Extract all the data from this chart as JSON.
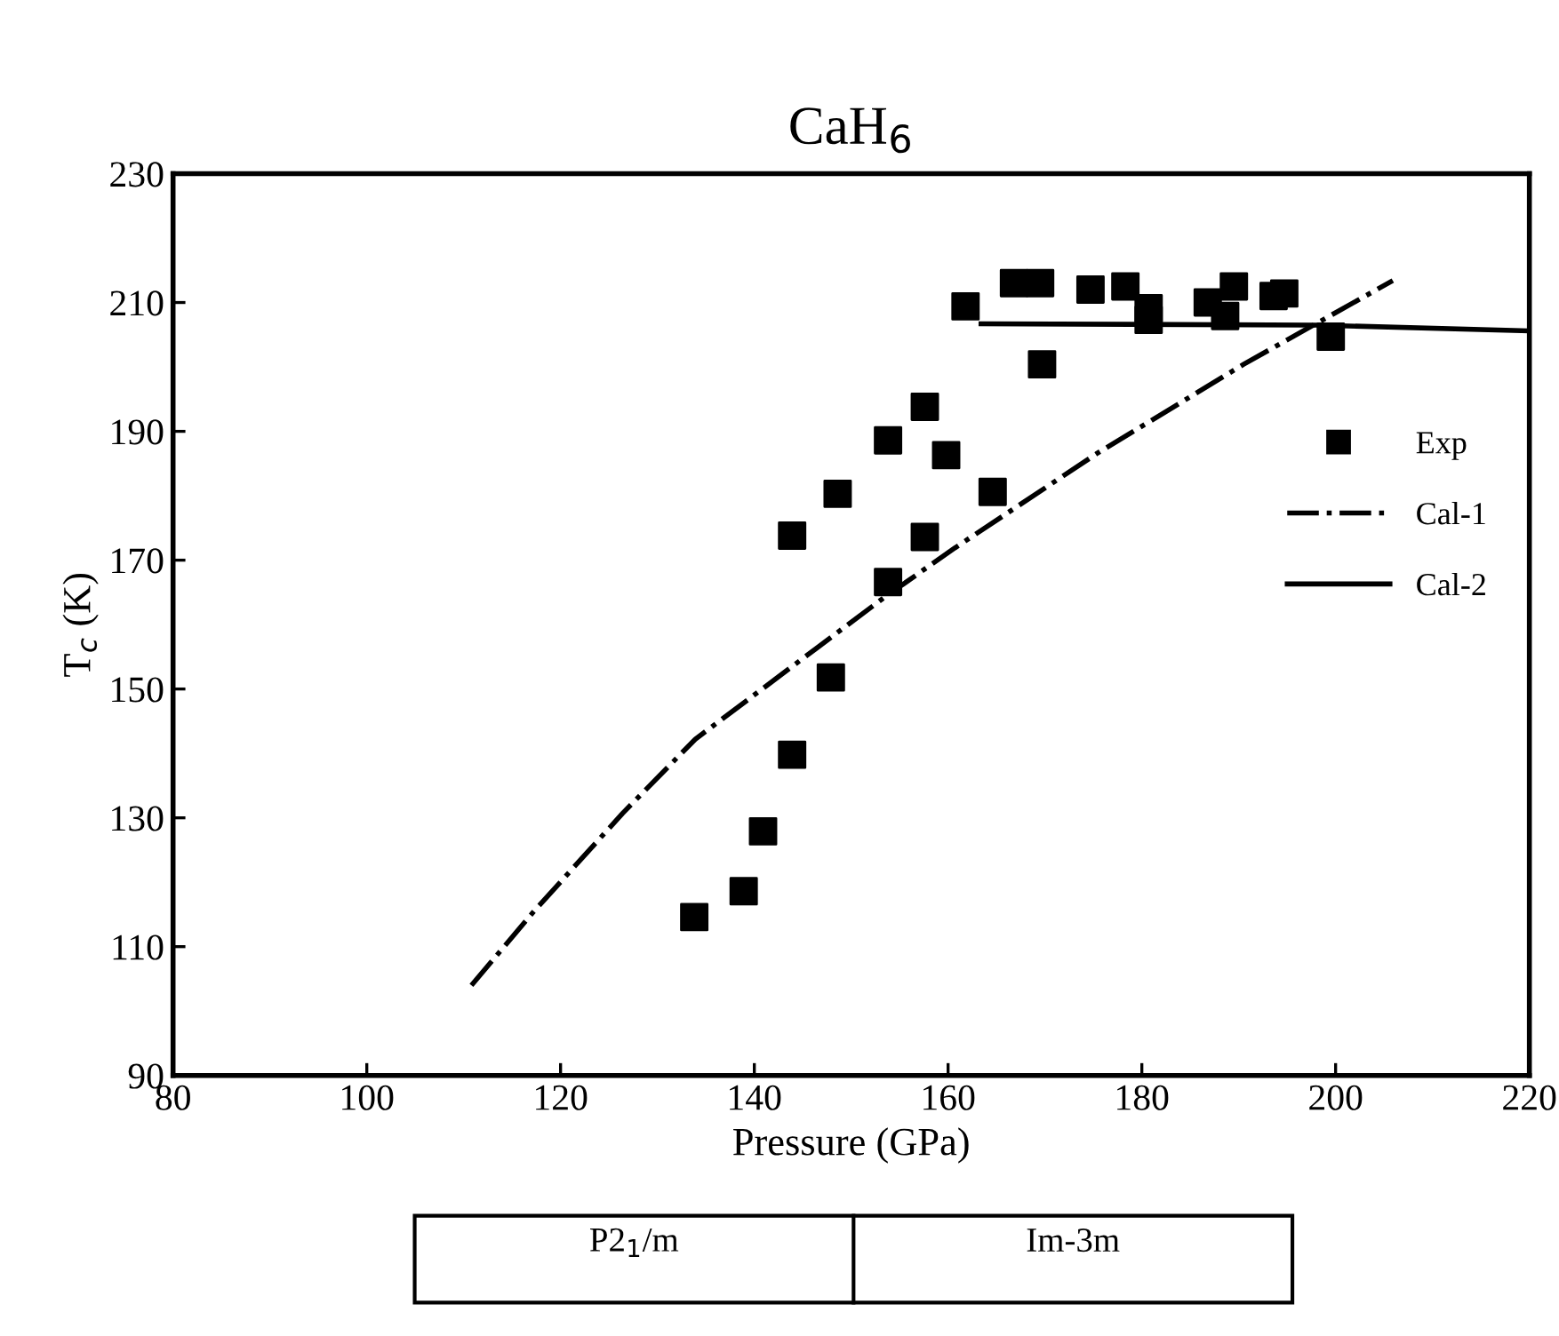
{
  "chart_data": {
    "type": "scatter",
    "title": "CaH$_{6}$",
    "xlabel": "Pressure (GPa)",
    "ylabel": "T$_{c}$ (K)",
    "xlim": [
      80,
      220
    ],
    "xticks": [
      80,
      100,
      120,
      140,
      160,
      180,
      200,
      220
    ],
    "ylim": [
      90,
      230
    ],
    "yticks": [
      90,
      110,
      130,
      150,
      170,
      190,
      210,
      230
    ],
    "grid": false,
    "legend": "right",
    "series": [
      {
        "name": "Exp",
        "marker": "square",
        "color": "#000000",
        "x": [
          133.8,
          138.9,
          140.9,
          143.9,
          147.9,
          143.9,
          148.6,
          153.8,
          157.6,
          153.8,
          157.6,
          159.8,
          164.6,
          169.7,
          161.8,
          166.8,
          169.5,
          174.7,
          180.7,
          180.7,
          178.3,
          186.8,
          188.6,
          189.5,
          193.6,
          194.7,
          199.5
        ],
        "values": [
          114.6,
          118.6,
          127.9,
          139.8,
          151.8,
          173.8,
          180.3,
          188.6,
          193.8,
          166.6,
          173.6,
          186.3,
          180.6,
          200.4,
          209.4,
          213.0,
          213.0,
          212.0,
          209.1,
          207.3,
          212.5,
          210.0,
          207.9,
          212.5,
          211.0,
          211.4,
          204.7
        ]
      },
      {
        "name": "Cal-1",
        "type": "line",
        "line_style": "dashdot",
        "color": "#000000",
        "x": [
          110.8,
          117.2,
          126.4,
          133.9,
          146.3,
          153.4,
          160.7,
          175.3,
          190.5,
          205.9
        ],
        "values": [
          104,
          115.4,
          130.7,
          142.2,
          156.2,
          164.2,
          171.9,
          186.5,
          200.4,
          213.4
        ]
      },
      {
        "name": "Cal-2",
        "type": "line",
        "line_style": "solid",
        "color": "#000000",
        "x": [
          163.4,
          198,
          220
        ],
        "values": [
          206.7,
          206.5,
          205.6
        ]
      }
    ],
    "annotations": [
      "P2$_{1}$/m",
      "Im-3m"
    ]
  }
}
